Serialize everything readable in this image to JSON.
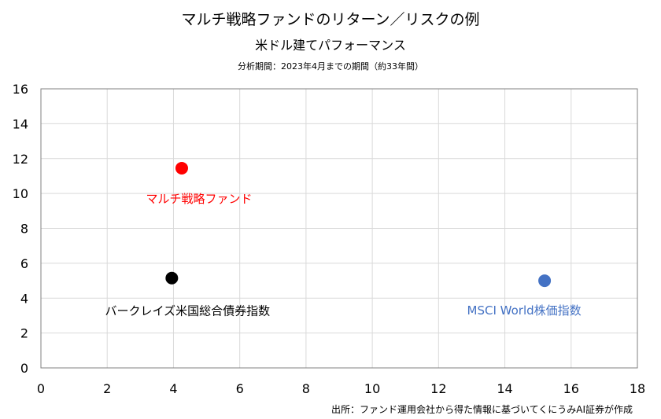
{
  "chart_data": {
    "type": "scatter",
    "title": "マルチ戦略ファンドのリターン／リスクの例",
    "subtitle": "米ドル建てパフォーマンス",
    "period_note": "分析期間：2023年4月までの期間（約33年間）",
    "source_note": "出所：ファンド運用会社から得た情報に基づいてくにうみAI証券が作成",
    "xlim": [
      0,
      18
    ],
    "ylim": [
      0,
      16
    ],
    "x_ticks": [
      0,
      2,
      4,
      6,
      8,
      10,
      12,
      14,
      16,
      18
    ],
    "y_ticks": [
      0,
      2,
      4,
      6,
      8,
      10,
      12,
      14,
      16
    ],
    "grid": true,
    "points": [
      {
        "label": "マルチ戦略ファンド",
        "x": 4.25,
        "y": 11.45,
        "color": "#ff0000",
        "label_color": "#ff0000"
      },
      {
        "label": "バークレイズ米国総合債券指数",
        "x": 3.95,
        "y": 5.15,
        "color": "#000000",
        "label_color": "#000000"
      },
      {
        "label": "MSCI World株価指数",
        "x": 15.2,
        "y": 5.0,
        "color": "#4472c4",
        "label_color": "#4472c4"
      }
    ]
  }
}
